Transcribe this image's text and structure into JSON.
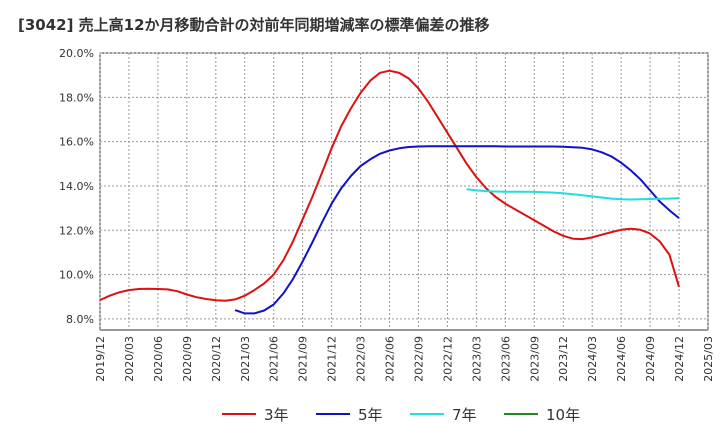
{
  "chart_data": {
    "type": "line",
    "title": "[3042]  売上高12か月移動合計の対前年同期増減率の標準偏差の推移",
    "xlabel": "",
    "ylabel": "",
    "ylim": [
      7.5,
      20.0
    ],
    "yticks": [
      8.0,
      10.0,
      12.0,
      14.0,
      16.0,
      18.0,
      20.0
    ],
    "ytick_labels": [
      "8.0%",
      "10.0%",
      "12.0%",
      "14.0%",
      "16.0%",
      "18.0%",
      "20.0%"
    ],
    "xrange": [
      "2019/12",
      "2025/03"
    ],
    "x_tick_labels": [
      "2019/12",
      "2020/03",
      "2020/06",
      "2020/09",
      "2020/12",
      "2021/03",
      "2021/06",
      "2021/09",
      "2021/12",
      "2022/03",
      "2022/06",
      "2022/09",
      "2022/12",
      "2023/03",
      "2023/06",
      "2023/09",
      "2023/12",
      "2024/03",
      "2024/06",
      "2024/09",
      "2024/12",
      "2025/03"
    ],
    "grid": true,
    "legend_position": "bottom",
    "series": [
      {
        "name": "3年",
        "color": "#dd1111",
        "points": [
          [
            "2019/12",
            8.85
          ],
          [
            "2020/01",
            9.05
          ],
          [
            "2020/02",
            9.2
          ],
          [
            "2020/03",
            9.3
          ],
          [
            "2020/04",
            9.35
          ],
          [
            "2020/05",
            9.36
          ],
          [
            "2020/06",
            9.35
          ],
          [
            "2020/07",
            9.33
          ],
          [
            "2020/08",
            9.25
          ],
          [
            "2020/09",
            9.1
          ],
          [
            "2020/10",
            8.98
          ],
          [
            "2020/11",
            8.9
          ],
          [
            "2020/12",
            8.84
          ],
          [
            "2021/01",
            8.82
          ],
          [
            "2021/02",
            8.88
          ],
          [
            "2021/03",
            9.05
          ],
          [
            "2021/04",
            9.3
          ],
          [
            "2021/05",
            9.6
          ],
          [
            "2021/06",
            10.0
          ],
          [
            "2021/07",
            10.65
          ],
          [
            "2021/08",
            11.5
          ],
          [
            "2021/09",
            12.5
          ],
          [
            "2021/10",
            13.5
          ],
          [
            "2021/11",
            14.6
          ],
          [
            "2021/12",
            15.7
          ],
          [
            "2022/01",
            16.7
          ],
          [
            "2022/02",
            17.5
          ],
          [
            "2022/03",
            18.2
          ],
          [
            "2022/04",
            18.75
          ],
          [
            "2022/05",
            19.1
          ],
          [
            "2022/06",
            19.2
          ],
          [
            "2022/07",
            19.1
          ],
          [
            "2022/08",
            18.85
          ],
          [
            "2022/09",
            18.4
          ],
          [
            "2022/10",
            17.8
          ],
          [
            "2022/11",
            17.1
          ],
          [
            "2022/12",
            16.4
          ],
          [
            "2023/01",
            15.7
          ],
          [
            "2023/02",
            15.0
          ],
          [
            "2023/03",
            14.4
          ],
          [
            "2023/04",
            13.9
          ],
          [
            "2023/05",
            13.5
          ],
          [
            "2023/06",
            13.2
          ],
          [
            "2023/07",
            12.95
          ],
          [
            "2023/08",
            12.7
          ],
          [
            "2023/09",
            12.45
          ],
          [
            "2023/10",
            12.2
          ],
          [
            "2023/11",
            11.95
          ],
          [
            "2023/12",
            11.75
          ],
          [
            "2024/01",
            11.62
          ],
          [
            "2024/02",
            11.6
          ],
          [
            "2024/03",
            11.68
          ],
          [
            "2024/04",
            11.8
          ],
          [
            "2024/05",
            11.92
          ],
          [
            "2024/06",
            12.02
          ],
          [
            "2024/07",
            12.07
          ],
          [
            "2024/08",
            12.02
          ],
          [
            "2024/09",
            11.85
          ],
          [
            "2024/10",
            11.5
          ],
          [
            "2024/11",
            10.9
          ],
          [
            "2024/12",
            9.45
          ]
        ]
      },
      {
        "name": "5年",
        "color": "#1111cc",
        "points": [
          [
            "2021/02",
            8.4
          ],
          [
            "2021/03",
            8.25
          ],
          [
            "2021/04",
            8.25
          ],
          [
            "2021/05",
            8.38
          ],
          [
            "2021/06",
            8.65
          ],
          [
            "2021/07",
            9.15
          ],
          [
            "2021/08",
            9.8
          ],
          [
            "2021/09",
            10.6
          ],
          [
            "2021/10",
            11.45
          ],
          [
            "2021/11",
            12.35
          ],
          [
            "2021/12",
            13.2
          ],
          [
            "2022/01",
            13.9
          ],
          [
            "2022/02",
            14.45
          ],
          [
            "2022/03",
            14.9
          ],
          [
            "2022/04",
            15.2
          ],
          [
            "2022/05",
            15.45
          ],
          [
            "2022/06",
            15.6
          ],
          [
            "2022/07",
            15.7
          ],
          [
            "2022/08",
            15.76
          ],
          [
            "2022/09",
            15.78
          ],
          [
            "2022/10",
            15.79
          ],
          [
            "2022/11",
            15.79
          ],
          [
            "2022/12",
            15.79
          ],
          [
            "2023/01",
            15.79
          ],
          [
            "2023/02",
            15.79
          ],
          [
            "2023/03",
            15.79
          ],
          [
            "2023/04",
            15.79
          ],
          [
            "2023/05",
            15.79
          ],
          [
            "2023/06",
            15.78
          ],
          [
            "2023/07",
            15.78
          ],
          [
            "2023/08",
            15.78
          ],
          [
            "2023/09",
            15.78
          ],
          [
            "2023/10",
            15.78
          ],
          [
            "2023/11",
            15.78
          ],
          [
            "2023/12",
            15.77
          ],
          [
            "2024/01",
            15.75
          ],
          [
            "2024/02",
            15.72
          ],
          [
            "2024/03",
            15.65
          ],
          [
            "2024/04",
            15.52
          ],
          [
            "2024/05",
            15.33
          ],
          [
            "2024/06",
            15.05
          ],
          [
            "2024/07",
            14.7
          ],
          [
            "2024/08",
            14.3
          ],
          [
            "2024/09",
            13.8
          ],
          [
            "2024/10",
            13.3
          ],
          [
            "2024/11",
            12.9
          ],
          [
            "2024/12",
            12.55
          ]
        ]
      },
      {
        "name": "7年",
        "color": "#22dddd",
        "points": [
          [
            "2023/02",
            13.85
          ],
          [
            "2023/03",
            13.8
          ],
          [
            "2023/04",
            13.77
          ],
          [
            "2023/05",
            13.75
          ],
          [
            "2023/06",
            13.74
          ],
          [
            "2023/07",
            13.74
          ],
          [
            "2023/08",
            13.74
          ],
          [
            "2023/09",
            13.73
          ],
          [
            "2023/10",
            13.72
          ],
          [
            "2023/11",
            13.7
          ],
          [
            "2023/12",
            13.67
          ],
          [
            "2024/01",
            13.63
          ],
          [
            "2024/02",
            13.58
          ],
          [
            "2024/03",
            13.53
          ],
          [
            "2024/04",
            13.48
          ],
          [
            "2024/05",
            13.43
          ],
          [
            "2024/06",
            13.4
          ],
          [
            "2024/07",
            13.39
          ],
          [
            "2024/08",
            13.4
          ],
          [
            "2024/09",
            13.41
          ],
          [
            "2024/10",
            13.42
          ],
          [
            "2024/11",
            13.43
          ],
          [
            "2024/12",
            13.45
          ]
        ]
      },
      {
        "name": "10年",
        "color": "#228822",
        "points": []
      }
    ]
  }
}
